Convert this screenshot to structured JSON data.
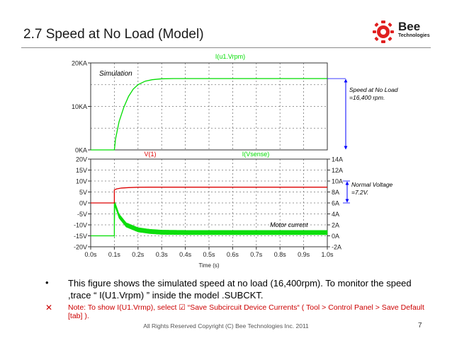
{
  "slide": {
    "title": "2.7 Speed at No Load (Model)",
    "logo_text": "Bee",
    "logo_subtext": "Technologies",
    "bullet1": "This figure shows the simulated speed at no load (16,400rpm). To monitor the speed ,trace “ I(U1.Vrpm) ” inside the model .SUBCKT.",
    "bullet2": "Note: To show I(U1.Vrmp), select ☑ “Save Subcircuit Device Currents“ ( Tool > Control Panel > Save Default [tab] ).",
    "bullet1_marker": "•",
    "bullet2_marker": "✕",
    "footer": "All Rights Reserved Copyright (C) Bee Technologies Inc. 2011",
    "page_number": "7",
    "colors": {
      "green": "#00dd00",
      "red": "#dd0000",
      "blue": "#0000ff",
      "note": "#cc0000"
    }
  },
  "chart_data": [
    {
      "type": "line",
      "inline_label": "Simulation",
      "series": [
        {
          "name": "I(u1.Vrpm)",
          "color": "#00dd00",
          "x": [
            0,
            0.1,
            0.105,
            0.12,
            0.14,
            0.16,
            0.18,
            0.2,
            0.23,
            0.26,
            0.3,
            0.35,
            0.4,
            1.0
          ],
          "y": [
            0,
            0,
            2.5,
            6.5,
            9.8,
            12.3,
            14.0,
            15.0,
            15.8,
            16.15,
            16.35,
            16.4,
            16.4,
            16.4
          ]
        }
      ],
      "xlim": [
        0,
        1.0
      ],
      "ylim": [
        0,
        20
      ],
      "y_ticks": [
        0,
        10,
        20
      ],
      "y_tick_labels": [
        "0KA",
        "10KA",
        "20KA"
      ],
      "grid": true,
      "annotation": {
        "text_lines": [
          "Speed at No Load",
          "=16,400 rpm."
        ],
        "arrow_from": 16.4,
        "arrow_to": 0
      }
    },
    {
      "type": "line",
      "series": [
        {
          "name": "V(1)",
          "axis": "left",
          "color": "#dd0000",
          "x": [
            0,
            0.1,
            0.1,
            0.11,
            0.13,
            0.16,
            0.2,
            0.25,
            1.0
          ],
          "y": [
            0,
            0,
            6.0,
            6.4,
            6.8,
            7.0,
            7.15,
            7.2,
            7.2
          ]
        },
        {
          "name": "I(Vsense)",
          "axis": "right",
          "color": "#00dd00",
          "x": [
            0,
            0.1,
            0.1,
            0.12,
            0.15,
            0.2,
            0.25,
            0.3,
            0.4,
            1.0
          ],
          "y": [
            0,
            0,
            6.1,
            3.6,
            2.0,
            1.1,
            0.8,
            0.65,
            0.6,
            0.6
          ],
          "ripple": 0.4
        }
      ],
      "xlim": [
        0,
        1.0
      ],
      "x_ticks": [
        0,
        0.1,
        0.2,
        0.3,
        0.4,
        0.5,
        0.6,
        0.7,
        0.8,
        0.9,
        1.0
      ],
      "x_tick_labels": [
        "0.0s",
        "0.1s",
        "0.2s",
        "0.3s",
        "0.4s",
        "0.5s",
        "0.6s",
        "0.7s",
        "0.8s",
        "0.9s",
        "1.0s"
      ],
      "xlabel": "Time (s)",
      "ylim_left": [
        -20,
        20
      ],
      "y_ticks_left": [
        20,
        15,
        10,
        5,
        0,
        -5,
        -10,
        -15,
        -20
      ],
      "y_tick_labels_left": [
        "20V",
        "15V",
        "10V",
        "5V",
        "0V",
        "-5V",
        "-10V",
        "-15V",
        "-20V"
      ],
      "ylim_right": [
        -2,
        14
      ],
      "y_ticks_right": [
        14,
        12,
        10,
        8,
        6,
        4,
        2,
        0,
        -2
      ],
      "y_tick_labels_right": [
        "14A",
        "12A",
        "10A",
        "8A",
        "6A",
        "4A",
        "2A",
        "0A",
        "-2A"
      ],
      "grid": true,
      "annotations": [
        {
          "text": "Motor current",
          "x": 0.93,
          "y_right": 2
        },
        {
          "text_lines": [
            "Normal Voltage",
            "=7.2V."
          ],
          "arrow_from_right": 10,
          "arrow_to_right": 6
        }
      ]
    }
  ]
}
